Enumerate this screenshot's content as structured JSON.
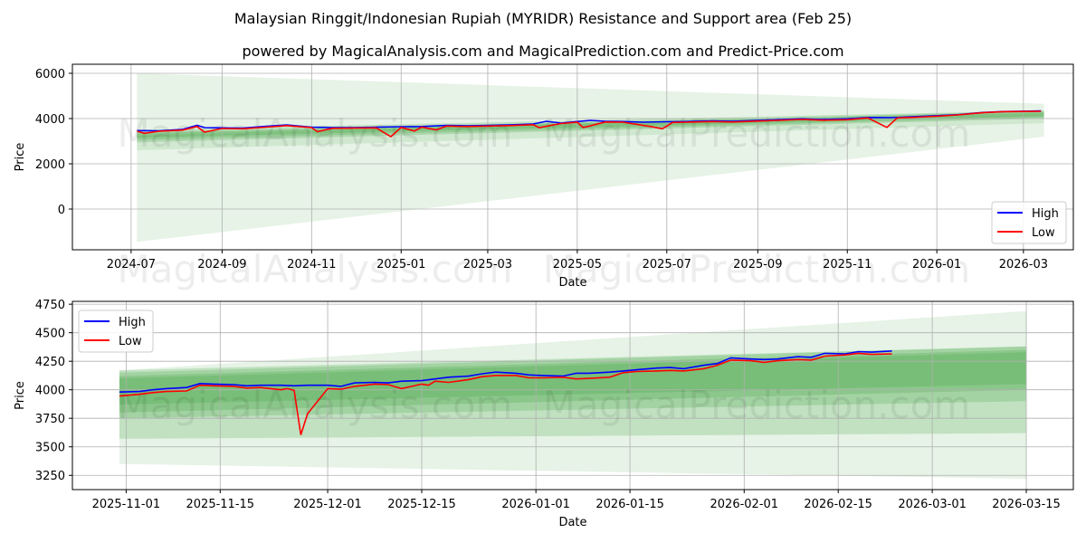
{
  "title": "Malaysian Ringgit/Indonesian Rupiah (MYRIDR) Resistance and Support area (Feb 25)",
  "subtitle": "powered by MagicalAnalysis.com and MagicalPrediction.com and Predict-Price.com",
  "watermarks": [
    "MagicalAnalysis.com",
    "MagicalPrediction.com"
  ],
  "colors": {
    "high": "#0000ff",
    "low": "#ff0000",
    "band": "#2e9b2e"
  },
  "chart_data": [
    {
      "type": "line",
      "xlabel": "Date",
      "ylabel": "Price",
      "ylim": [
        -1800,
        6400
      ],
      "xlim": [
        "2024-05-22",
        "2026-04-04"
      ],
      "yticks": [
        0,
        2000,
        4000,
        6000
      ],
      "xticks": [
        "2024-07",
        "2024-09",
        "2024-11",
        "2025-01",
        "2025-03",
        "2025-05",
        "2025-07",
        "2025-09",
        "2025-11",
        "2026-01",
        "2026-03"
      ],
      "xtick_dates": [
        "2024-07-01",
        "2024-09-01",
        "2024-11-01",
        "2025-01-01",
        "2025-03-01",
        "2025-05-01",
        "2025-07-01",
        "2025-09-01",
        "2025-11-01",
        "2026-01-01",
        "2026-03-01"
      ],
      "grid": true,
      "legend": {
        "position": "lower-right",
        "entries": [
          "High",
          "Low"
        ]
      },
      "bands": {
        "start": "2024-07-05",
        "end": "2026-03-15",
        "items": [
          {
            "start": [
              -1450,
              6000
            ],
            "end": [
              3200,
              4650
            ],
            "alpha": 0.12
          },
          {
            "start": [
              2600,
              3250
            ],
            "end": [
              3800,
              4350
            ],
            "alpha": 0.12
          },
          {
            "start": [
              2950,
              3500
            ],
            "end": [
              4000,
              4350
            ],
            "alpha": 0.2
          },
          {
            "start": [
              3050,
              3400
            ],
            "end": [
              4050,
              4300
            ],
            "alpha": 0.2
          },
          {
            "start": [
              3150,
              3350
            ],
            "end": [
              4100,
              4250
            ],
            "alpha": 0.2
          }
        ]
      },
      "series": [
        {
          "name": "High",
          "dates": [
            "2024-07-05",
            "2024-07-20",
            "2024-08-05",
            "2024-08-15",
            "2024-08-20",
            "2024-09-01",
            "2024-09-15",
            "2024-10-01",
            "2024-10-15",
            "2024-11-01",
            "2024-11-15",
            "2024-12-01",
            "2024-12-15",
            "2025-01-01",
            "2025-01-15",
            "2025-02-01",
            "2025-02-15",
            "2025-03-01",
            "2025-03-15",
            "2025-04-01",
            "2025-04-10",
            "2025-04-20",
            "2025-05-01",
            "2025-05-10",
            "2025-05-20",
            "2025-06-01",
            "2025-06-15",
            "2025-07-01",
            "2025-07-15",
            "2025-08-01",
            "2025-08-15",
            "2025-09-01",
            "2025-09-15",
            "2025-10-01",
            "2025-10-15",
            "2025-11-01",
            "2025-11-15",
            "2025-12-01",
            "2025-12-15",
            "2026-01-01",
            "2026-01-15",
            "2026-02-01",
            "2026-02-15",
            "2026-03-13"
          ],
          "values": [
            3470,
            3460,
            3520,
            3700,
            3600,
            3590,
            3580,
            3660,
            3720,
            3620,
            3600,
            3600,
            3620,
            3640,
            3650,
            3700,
            3680,
            3700,
            3720,
            3760,
            3880,
            3800,
            3870,
            3920,
            3880,
            3870,
            3840,
            3860,
            3870,
            3900,
            3880,
            3920,
            3950,
            3990,
            3960,
            3990,
            4050,
            4040,
            4080,
            4130,
            4170,
            4270,
            4310,
            4340
          ]
        },
        {
          "name": "Low",
          "dates": [
            "2024-07-05",
            "2024-07-10",
            "2024-07-20",
            "2024-08-05",
            "2024-08-15",
            "2024-08-20",
            "2024-09-01",
            "2024-09-15",
            "2024-10-01",
            "2024-10-15",
            "2024-11-01",
            "2024-11-05",
            "2024-11-15",
            "2024-12-01",
            "2024-12-15",
            "2024-12-25",
            "2025-01-01",
            "2025-01-10",
            "2025-01-15",
            "2025-01-25",
            "2025-02-01",
            "2025-02-15",
            "2025-03-01",
            "2025-03-15",
            "2025-04-01",
            "2025-04-05",
            "2025-04-20",
            "2025-05-01",
            "2025-05-05",
            "2025-05-20",
            "2025-06-01",
            "2025-06-20",
            "2025-06-28",
            "2025-07-05",
            "2025-07-15",
            "2025-08-01",
            "2025-08-15",
            "2025-09-01",
            "2025-09-15",
            "2025-10-01",
            "2025-10-15",
            "2025-11-01",
            "2025-11-15",
            "2025-11-28",
            "2025-12-05",
            "2025-12-15",
            "2026-01-01",
            "2026-01-15",
            "2026-02-01",
            "2026-02-15",
            "2026-03-13"
          ],
          "values": [
            3440,
            3350,
            3440,
            3490,
            3650,
            3400,
            3560,
            3550,
            3620,
            3690,
            3600,
            3420,
            3570,
            3580,
            3590,
            3200,
            3610,
            3450,
            3620,
            3500,
            3670,
            3650,
            3670,
            3690,
            3730,
            3600,
            3780,
            3840,
            3600,
            3850,
            3840,
            3650,
            3550,
            3830,
            3840,
            3870,
            3850,
            3890,
            3920,
            3960,
            3930,
            3950,
            4030,
            3610,
            4030,
            4050,
            4105,
            4160,
            4255,
            4305,
            4320
          ]
        }
      ]
    },
    {
      "type": "line",
      "xlabel": "Date",
      "ylabel": "Price",
      "ylim": [
        3125,
        4775
      ],
      "xlim": [
        "2025-10-24",
        "2026-03-22"
      ],
      "yticks": [
        3250,
        3500,
        3750,
        4000,
        4250,
        4500,
        4750
      ],
      "xticks": [
        "2025-11-01",
        "2025-11-15",
        "2025-12-01",
        "2025-12-15",
        "2026-01-01",
        "2026-01-15",
        "2026-02-01",
        "2026-02-15",
        "2026-03-01",
        "2026-03-15"
      ],
      "grid": true,
      "legend": {
        "position": "upper-left",
        "entries": [
          "High",
          "Low"
        ]
      },
      "bands": {
        "start": "2025-10-31",
        "end": "2026-03-15",
        "items": [
          {
            "start": [
              3350,
              4170
            ],
            "end": [
              3220,
              4690
            ],
            "alpha": 0.12
          },
          {
            "start": [
              3570,
              4170
            ],
            "end": [
              3620,
              4380
            ],
            "alpha": 0.2
          },
          {
            "start": [
              3750,
              4150
            ],
            "end": [
              3900,
              4380
            ],
            "alpha": 0.2
          },
          {
            "start": [
              3800,
              4120
            ],
            "end": [
              4000,
              4350
            ],
            "alpha": 0.2
          },
          {
            "start": [
              3870,
              4100
            ],
            "end": [
              4050,
              4330
            ],
            "alpha": 0.2
          }
        ]
      },
      "series": [
        {
          "name": "High",
          "dates": [
            "2025-10-31",
            "2025-11-03",
            "2025-11-05",
            "2025-11-07",
            "2025-11-10",
            "2025-11-12",
            "2025-11-14",
            "2025-11-17",
            "2025-11-19",
            "2025-11-21",
            "2025-11-24",
            "2025-11-26",
            "2025-11-28",
            "2025-12-01",
            "2025-12-03",
            "2025-12-05",
            "2025-12-08",
            "2025-12-10",
            "2025-12-12",
            "2025-12-15",
            "2025-12-17",
            "2025-12-19",
            "2025-12-22",
            "2025-12-24",
            "2025-12-26",
            "2025-12-29",
            "2025-12-31",
            "2026-01-02",
            "2026-01-05",
            "2026-01-07",
            "2026-01-09",
            "2026-01-12",
            "2026-01-14",
            "2026-01-16",
            "2026-01-19",
            "2026-01-21",
            "2026-01-23",
            "2026-01-26",
            "2026-01-28",
            "2026-01-30",
            "2026-02-02",
            "2026-02-04",
            "2026-02-06",
            "2026-02-09",
            "2026-02-11",
            "2026-02-13",
            "2026-02-16",
            "2026-02-18",
            "2026-02-20",
            "2026-02-23"
          ],
          "values": [
            3980,
            3985,
            4000,
            4010,
            4020,
            4055,
            4050,
            4045,
            4035,
            4040,
            4040,
            4035,
            4040,
            4040,
            4030,
            4060,
            4065,
            4060,
            4075,
            4080,
            4095,
            4110,
            4120,
            4140,
            4155,
            4145,
            4130,
            4125,
            4120,
            4145,
            4145,
            4155,
            4165,
            4175,
            4190,
            4195,
            4185,
            4215,
            4230,
            4280,
            4270,
            4265,
            4270,
            4290,
            4285,
            4320,
            4315,
            4335,
            4330,
            4340
          ]
        },
        {
          "name": "Low",
          "dates": [
            "2025-10-31",
            "2025-11-03",
            "2025-11-05",
            "2025-11-07",
            "2025-11-10",
            "2025-11-12",
            "2025-11-14",
            "2025-11-17",
            "2025-11-19",
            "2025-11-21",
            "2025-11-24",
            "2025-11-25",
            "2025-11-26",
            "2025-11-27",
            "2025-11-28",
            "2025-12-01",
            "2025-12-03",
            "2025-12-05",
            "2025-12-08",
            "2025-12-10",
            "2025-12-12",
            "2025-12-15",
            "2025-12-16",
            "2025-12-17",
            "2025-12-19",
            "2025-12-22",
            "2025-12-24",
            "2025-12-26",
            "2025-12-29",
            "2025-12-31",
            "2026-01-02",
            "2026-01-05",
            "2026-01-07",
            "2026-01-09",
            "2026-01-12",
            "2026-01-14",
            "2026-01-16",
            "2026-01-19",
            "2026-01-21",
            "2026-01-23",
            "2026-01-26",
            "2026-01-28",
            "2026-01-30",
            "2026-02-02",
            "2026-02-04",
            "2026-02-06",
            "2026-02-09",
            "2026-02-11",
            "2026-02-13",
            "2026-02-16",
            "2026-02-18",
            "2026-02-20",
            "2026-02-23"
          ],
          "values": [
            3945,
            3960,
            3975,
            3985,
            3990,
            4040,
            4035,
            4030,
            4015,
            4020,
            4000,
            4010,
            3995,
            3605,
            3790,
            4010,
            4005,
            4030,
            4050,
            4045,
            4010,
            4050,
            4040,
            4075,
            4065,
            4090,
            4115,
            4125,
            4125,
            4105,
            4105,
            4110,
            4095,
            4100,
            4110,
            4150,
            4160,
            4165,
            4170,
            4165,
            4185,
            4215,
            4260,
            4255,
            4240,
            4255,
            4265,
            4260,
            4295,
            4305,
            4320,
            4310,
            4315
          ]
        }
      ]
    }
  ]
}
